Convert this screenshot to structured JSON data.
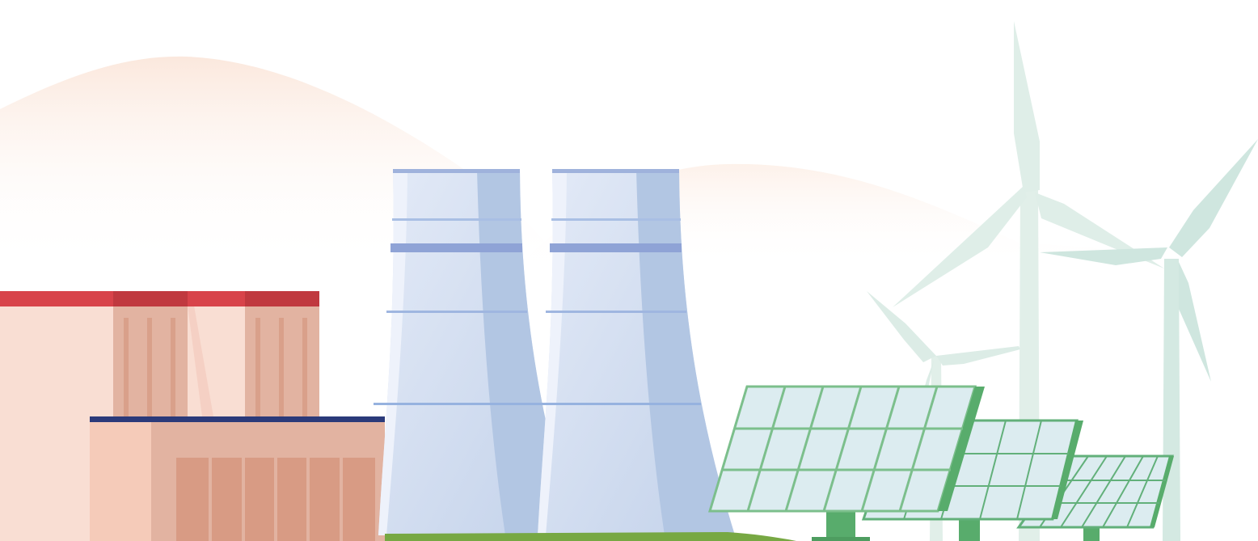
{
  "scene": {
    "subject": "energy-illustration",
    "elements": [
      "background-hills",
      "wind-turbines",
      "factory-building",
      "cooling-towers",
      "solar-panels",
      "ground"
    ]
  },
  "colors": {
    "hill": "#fdeee6",
    "factory_roof": "#d8434a",
    "factory_roof_dark": "#c0393f",
    "factory_wall_light": "#f9ded3",
    "factory_wall_mid": "#e2b3a1",
    "factory_wall_dark": "#d89b84",
    "factory_trim": "#2b3a7a",
    "tower_light": "#dce5f4",
    "tower_dark": "#aec3e0",
    "tower_band": "#7f96cf",
    "solar_frame": "#62b07a",
    "solar_cell": "#dcecf0",
    "solar_post": "#58ac6c",
    "turbine": "#cfe6df",
    "ground": "#77a843"
  }
}
